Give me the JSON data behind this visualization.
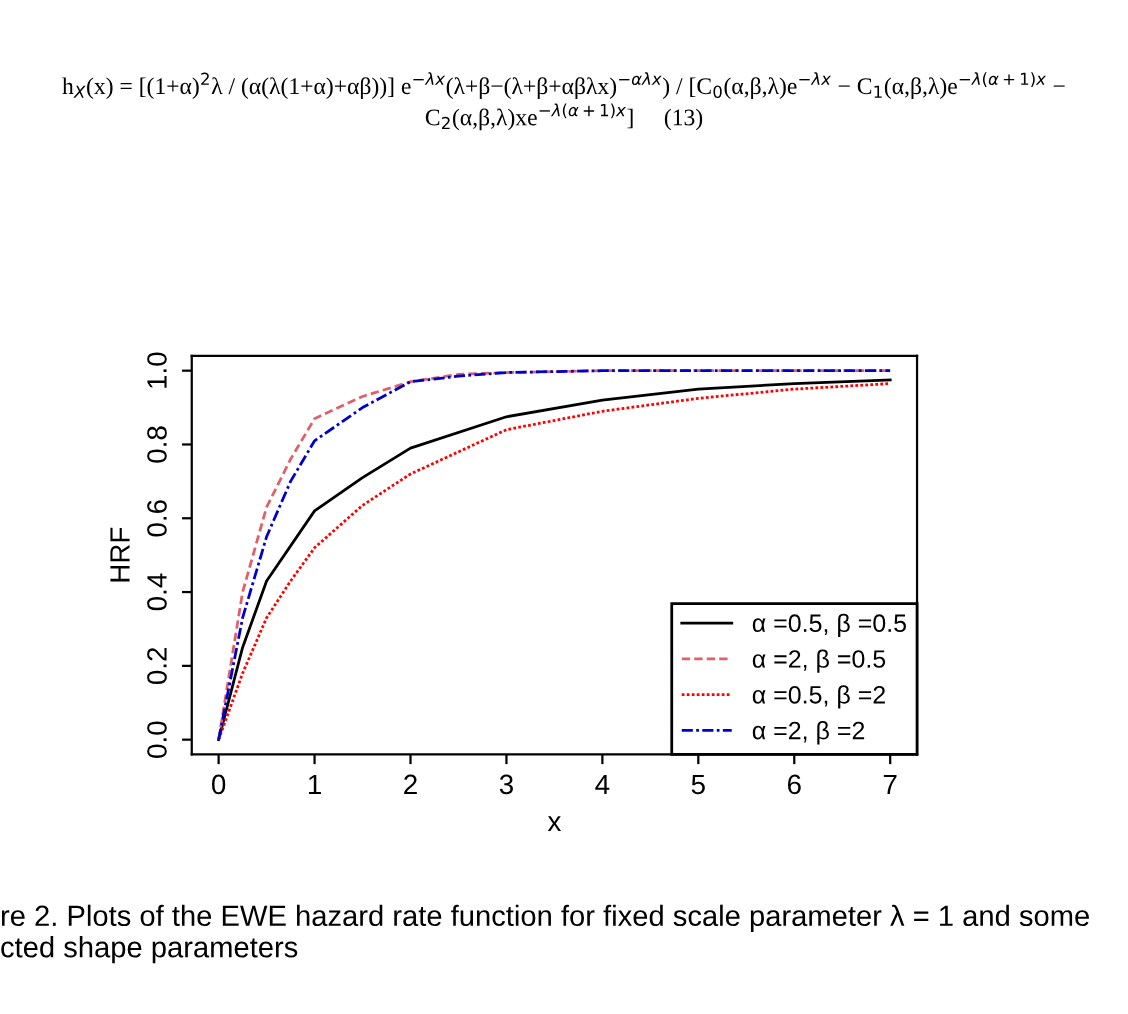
{
  "chart_data": {
    "type": "line",
    "xlabel": "x",
    "ylabel": "HRF",
    "annotations": [
      "h$_{X}$(x) = [(1+α)$^{2}$λ / (α(λ(1+α)+αβ))] e$^{−λx}$(λ+β−(λ+β+αβλx)$^{−αλx}$) / [C$_{0}$(α,β,λ)e$^{−λx}$ − C$_{1}$(α,β,λ)e$^{−λ(α+1)x}$ − C$_{2}$(α,β,λ)xe$^{−λ(α+1)x}$]     (13)",
      "re 2. Plots of the EWE hazard rate function for fixed scale parameter λ = 1 and some\ncted shape parameters"
    ],
    "xlim": [
      -0.28,
      7.28
    ],
    "ylim": [
      -0.04,
      1.04
    ],
    "xticks": [
      0,
      1,
      2,
      3,
      4,
      5,
      6,
      7
    ],
    "yticks": [
      {
        "value": 0,
        "label": "0.0"
      },
      {
        "value": 0.2,
        "label": "0.2"
      },
      {
        "value": 0.4,
        "label": "0.4"
      },
      {
        "value": 0.6,
        "label": "0.6"
      },
      {
        "value": 0.8,
        "label": "0.8"
      },
      {
        "value": 1,
        "label": "1.0"
      }
    ],
    "grid": false,
    "legend": "bottom right",
    "series": [
      {
        "name": "α =0.5, β =0.5",
        "color": "#000000",
        "line_style": "solid",
        "x": [
          0,
          0.25,
          0.5,
          1,
          1.5,
          2,
          3,
          4,
          5,
          6,
          7
        ],
        "values": [
          0,
          0.25,
          0.43,
          0.62,
          0.71,
          0.79,
          0.875,
          0.92,
          0.95,
          0.965,
          0.975
        ]
      },
      {
        "name": "α =2, β =0.5",
        "color": "#e0606a",
        "line_style": "dashed",
        "x": [
          0,
          0.25,
          0.5,
          0.75,
          1,
          1.5,
          2,
          2.5,
          3,
          4,
          5,
          6,
          7
        ],
        "values": [
          0,
          0.4,
          0.63,
          0.76,
          0.87,
          0.93,
          0.97,
          0.99,
          0.995,
          1,
          1,
          1,
          1
        ]
      },
      {
        "name": "α =0.5, β =2",
        "color": "#ff0000",
        "line_style": "dotted",
        "x": [
          0,
          0.25,
          0.5,
          0.75,
          1,
          1.5,
          2,
          3,
          4,
          5,
          6,
          7
        ],
        "values": [
          0,
          0.18,
          0.33,
          0.43,
          0.52,
          0.635,
          0.72,
          0.84,
          0.89,
          0.925,
          0.95,
          0.965
        ]
      },
      {
        "name": "α =2, β =2",
        "color": "#0000cc",
        "line_style": "dashdot",
        "x": [
          0,
          0.25,
          0.5,
          0.75,
          1,
          1.5,
          2,
          2.5,
          3,
          4,
          5,
          6,
          7
        ],
        "values": [
          0,
          0.33,
          0.55,
          0.7,
          0.81,
          0.9,
          0.97,
          0.985,
          0.995,
          1,
          1,
          1,
          1
        ]
      }
    ]
  }
}
